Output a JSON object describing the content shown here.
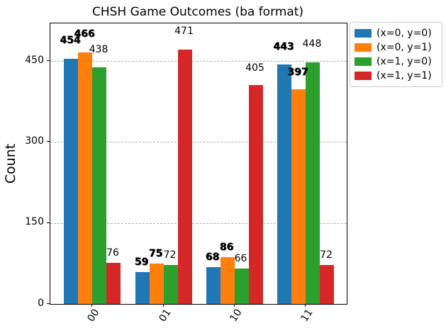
{
  "title": "CHSH Game Outcomes (ba format)",
  "chart_data": {
    "type": "bar",
    "title": "CHSH Game Outcomes (ba format)",
    "xlabel": "",
    "ylabel": "Count",
    "categories": [
      "00",
      "01",
      "10",
      "11"
    ],
    "series": [
      {
        "name": "(x=0, y=0)",
        "color": "#1f77b4",
        "values": [
          454,
          59,
          68,
          443
        ]
      },
      {
        "name": "(x=0, y=1)",
        "color": "#ff7f0e",
        "values": [
          466,
          75,
          86,
          397
        ]
      },
      {
        "name": "(x=1, y=0)",
        "color": "#2ca02c",
        "values": [
          438,
          72,
          66,
          448
        ]
      },
      {
        "name": "(x=1, y=1)",
        "color": "#d62728",
        "values": [
          76,
          471,
          405,
          72
        ]
      }
    ],
    "yticks": [
      0,
      150,
      300,
      450
    ],
    "ylim": [
      0,
      520
    ],
    "grid": "horizontal-dashed",
    "legend_position": "upper-right-outside",
    "bar_value_labels": true
  }
}
